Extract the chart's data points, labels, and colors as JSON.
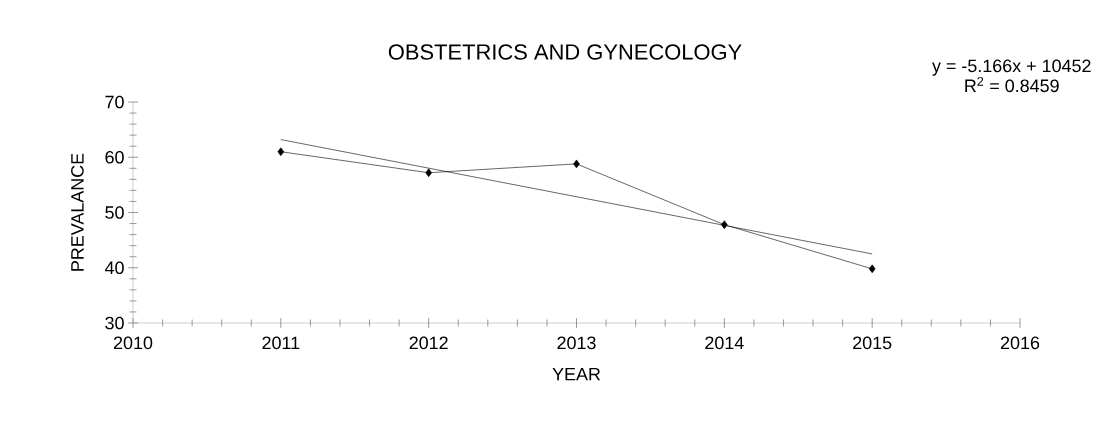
{
  "chart_data": {
    "type": "line",
    "title": "OBSTETRICS AND GYNECOLOGY",
    "xlabel": "YEAR",
    "ylabel": "PREVALANCE",
    "x": [
      2011,
      2012,
      2013,
      2014,
      2015
    ],
    "series": [
      {
        "color": "#000000",
        "values": [
          61.0,
          57.2,
          58.8,
          47.8,
          39.8
        ]
      },
      {
        "type": "line",
        "marker": "none",
        "color": "#000000",
        "x": [
          2011,
          2015
        ],
        "values": [
          63.2,
          42.5
        ]
      }
    ],
    "annotations": [
      "y = -5.166x + 10452",
      "R$^{2}$ = 0.8459"
    ],
    "xlim": [
      2010,
      2016
    ],
    "xticks": [
      2010,
      2011,
      2012,
      2013,
      2014,
      2015,
      2016
    ],
    "ylim": [
      30,
      70
    ],
    "yticks": [
      30,
      40,
      50,
      60,
      70
    ],
    "marker": "diamond",
    "line_style": "solid"
  }
}
